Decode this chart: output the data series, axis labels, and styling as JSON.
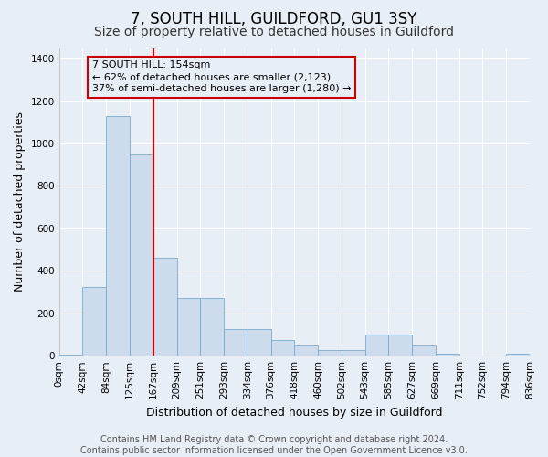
{
  "title": "7, SOUTH HILL, GUILDFORD, GU1 3SY",
  "subtitle": "Size of property relative to detached houses in Guildford",
  "xlabel": "Distribution of detached houses by size in Guildford",
  "ylabel": "Number of detached properties",
  "bar_values": [
    5,
    325,
    1130,
    950,
    460,
    270,
    270,
    125,
    125,
    75,
    50,
    25,
    25,
    100,
    100,
    50,
    10,
    0,
    0,
    10
  ],
  "bar_color": "#ccdcec",
  "bar_edge_color": "#7aaaca",
  "x_labels": [
    "0sqm",
    "42sqm",
    "84sqm",
    "125sqm",
    "167sqm",
    "209sqm",
    "251sqm",
    "293sqm",
    "334sqm",
    "376sqm",
    "418sqm",
    "460sqm",
    "502sqm",
    "543sqm",
    "585sqm",
    "627sqm",
    "669sqm",
    "711sqm",
    "752sqm",
    "794sqm",
    "836sqm"
  ],
  "vline_x_label": "167sqm",
  "vline_color": "#cc0000",
  "annotation_text": "7 SOUTH HILL: 154sqm\n← 62% of detached houses are smaller (2,123)\n37% of semi-detached houses are larger (1,280) →",
  "annotation_box_color": "#cc0000",
  "ylim": [
    0,
    1450
  ],
  "yticks": [
    0,
    200,
    400,
    600,
    800,
    1000,
    1200,
    1400
  ],
  "footer_line1": "Contains HM Land Registry data © Crown copyright and database right 2024.",
  "footer_line2": "Contains public sector information licensed under the Open Government Licence v3.0.",
  "bg_color": "#e8eef6",
  "grid_color": "#ffffff",
  "title_fontsize": 12,
  "subtitle_fontsize": 10,
  "axis_label_fontsize": 9,
  "tick_fontsize": 7.5,
  "annotation_fontsize": 8,
  "footer_fontsize": 7
}
